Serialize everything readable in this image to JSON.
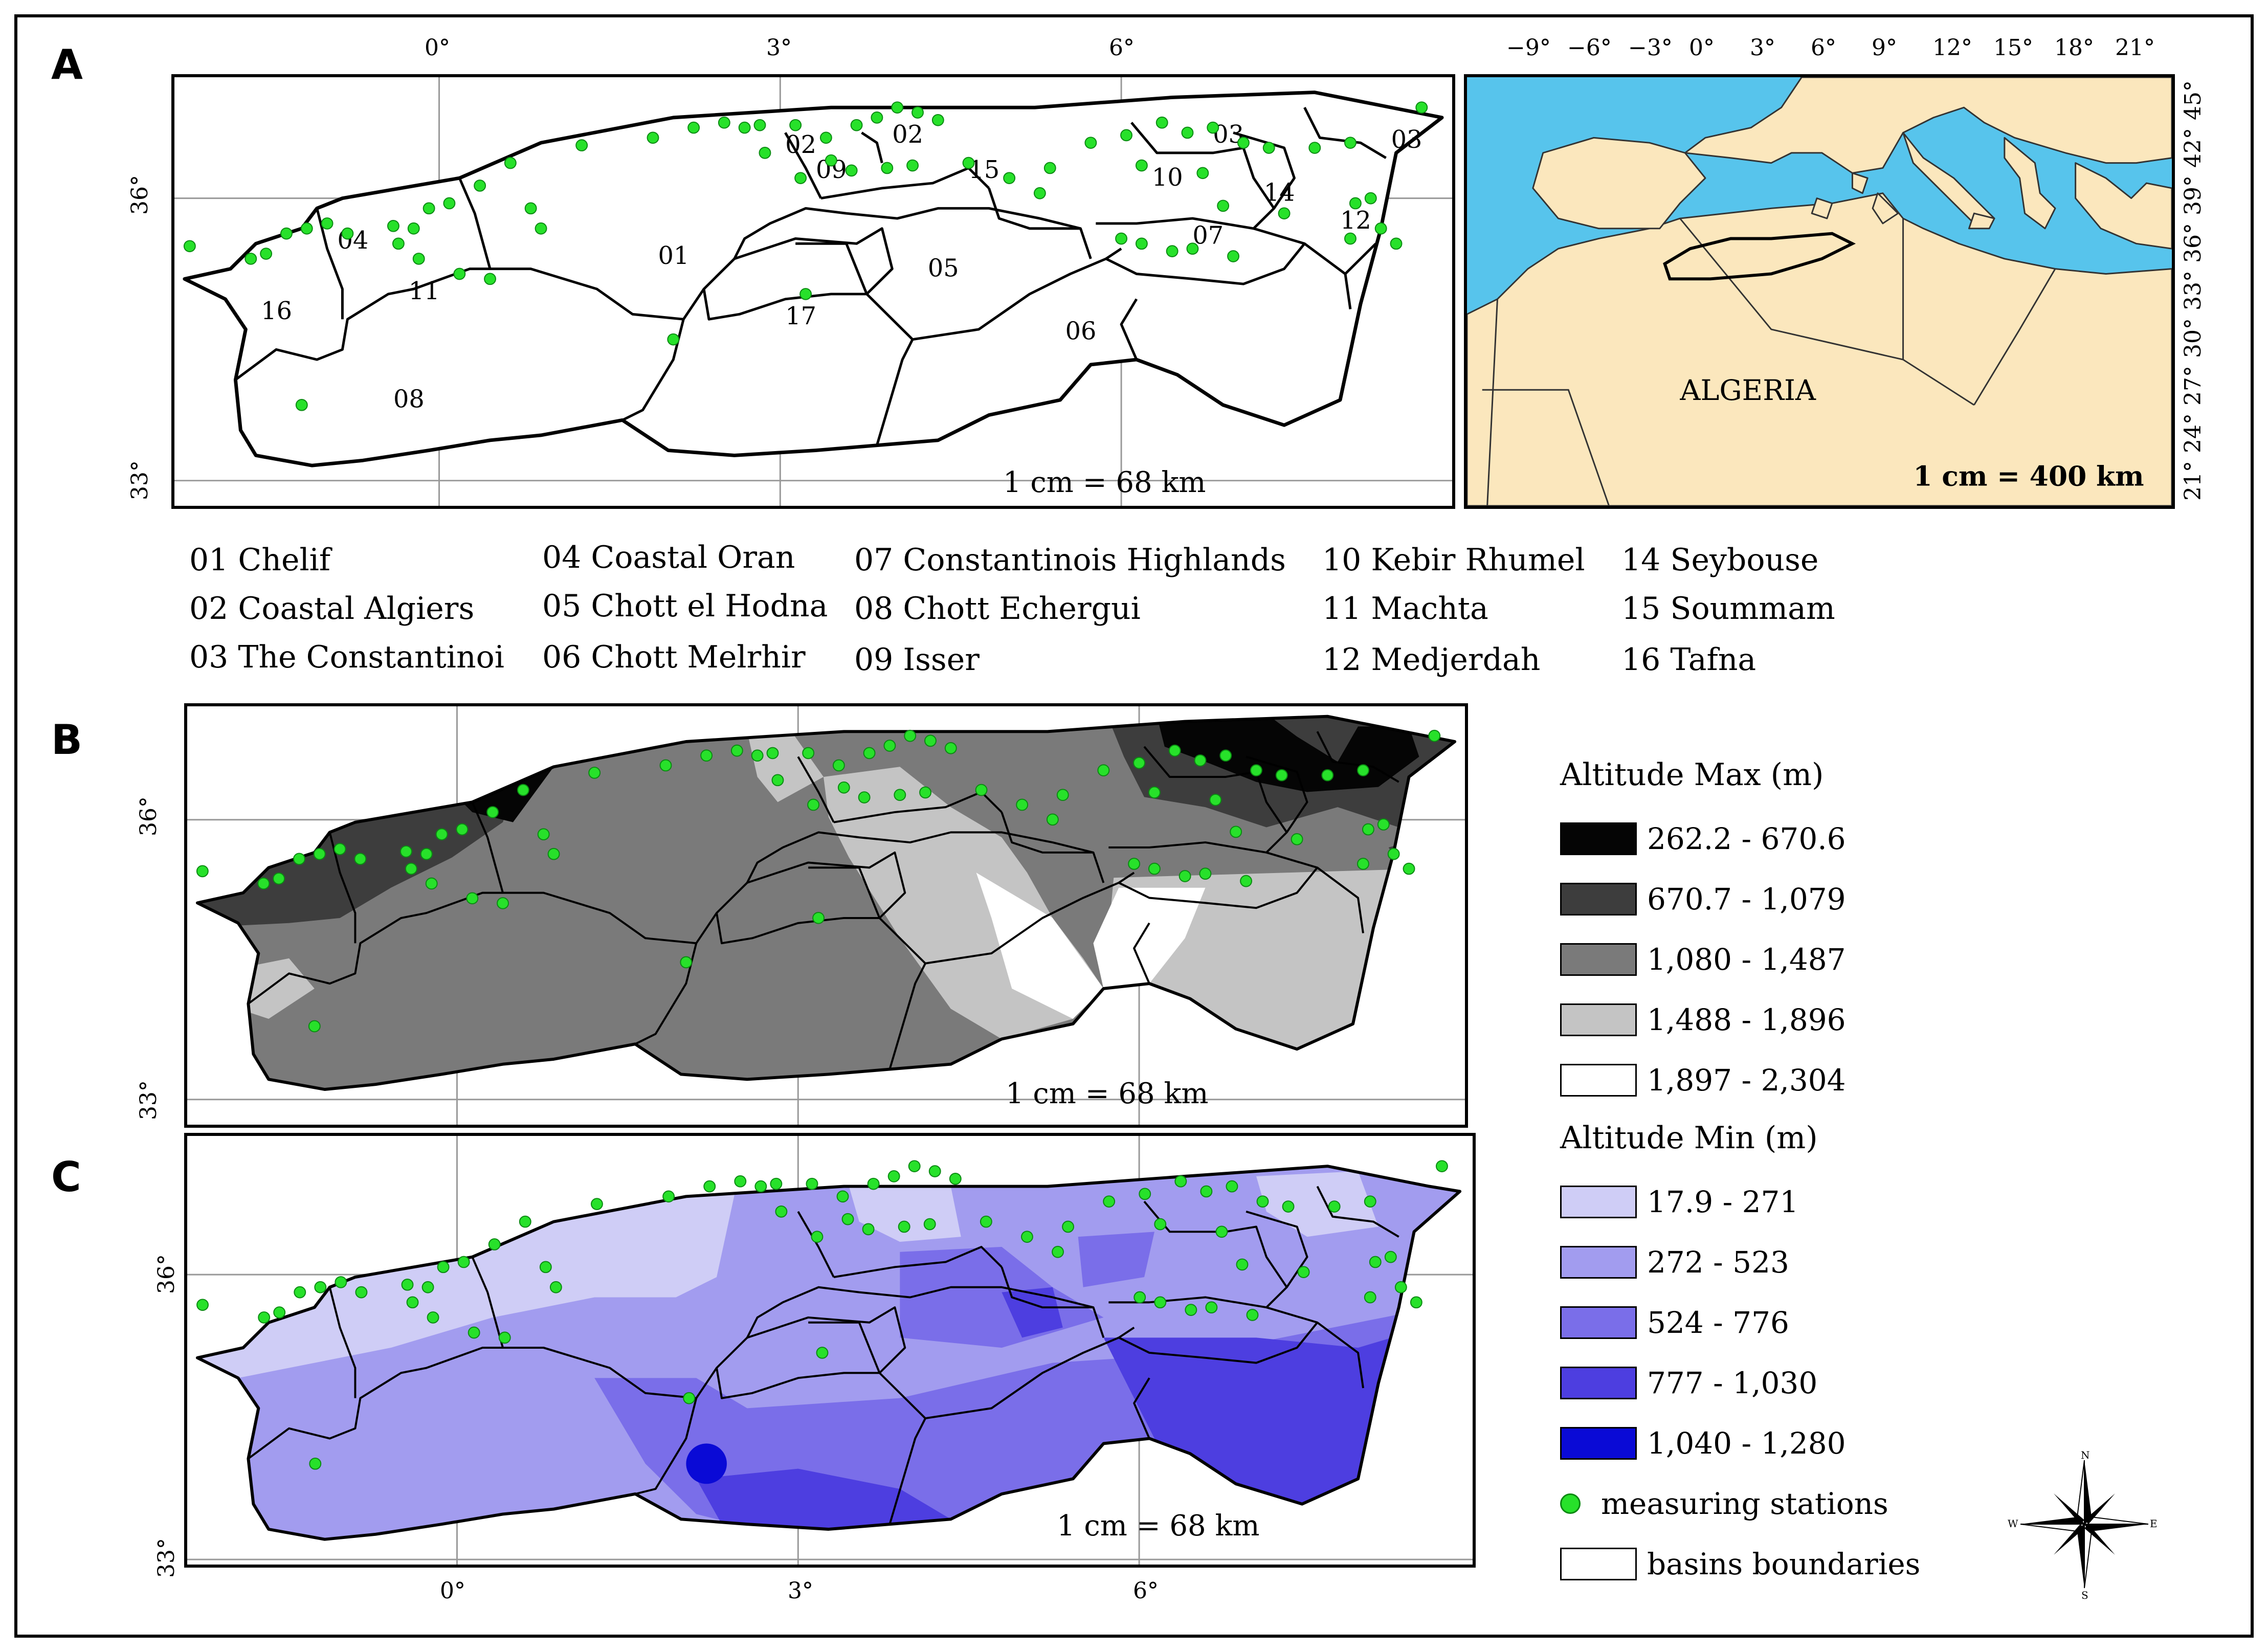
{
  "panels": {
    "a": "A",
    "b": "B",
    "c": "C"
  },
  "longitude_ticks": [
    "0°",
    "3°",
    "6°"
  ],
  "latitude_ticks": [
    "36°",
    "33°"
  ],
  "scale_regional": "1 cm = 68 km",
  "inset": {
    "longitude_ticks": [
      "−9°",
      "−6°",
      "−3°",
      "0°",
      "3°",
      "6°",
      "9°",
      "12°",
      "15°",
      "18°",
      "21°"
    ],
    "latitude_ticks": [
      "45°",
      "42°",
      "39°",
      "36°",
      "33°",
      "30°",
      "27°",
      "24°",
      "21°"
    ],
    "country_label": "ALGERIA",
    "scale": "1 cm = 400 km",
    "sea_color": "#57c4ec",
    "land_color": "#fbe7bd"
  },
  "basins": [
    {
      "code": "01",
      "name": "01 Chelif"
    },
    {
      "code": "02",
      "name": "02 Coastal Algiers"
    },
    {
      "code": "03",
      "name": "03 The Constantinoi"
    },
    {
      "code": "04",
      "name": "04 Coastal Oran"
    },
    {
      "code": "05",
      "name": "05 Chott el Hodna"
    },
    {
      "code": "06",
      "name": "06 Chott Melrhir"
    },
    {
      "code": "07",
      "name": "07 Constantinois Highlands"
    },
    {
      "code": "08",
      "name": "08 Chott Echergui"
    },
    {
      "code": "09",
      "name": "09 Isser"
    },
    {
      "code": "10",
      "name": "10 Kebir Rhumel"
    },
    {
      "code": "11",
      "name": "11 Machta"
    },
    {
      "code": "12",
      "name": "12 Medjerdah"
    },
    {
      "code": "14",
      "name": "14 Seybouse"
    },
    {
      "code": "15",
      "name": "15 Soummam"
    },
    {
      "code": "16",
      "name": "16 Tafna"
    }
  ],
  "map_labels": [
    "04",
    "11",
    "16",
    "01",
    "02",
    "09",
    "02",
    "15",
    "05",
    "17",
    "06",
    "10",
    "03",
    "14",
    "03",
    "12",
    "07",
    "08"
  ],
  "legend": {
    "max_title": "Altitude Max (m)",
    "max_classes": [
      {
        "label": "262.2 - 670.6",
        "color": "#050505"
      },
      {
        "label": "670.7 - 1,079",
        "color": "#3d3d3d"
      },
      {
        "label": "1,080 - 1,487",
        "color": "#7a7a7a"
      },
      {
        "label": "1,488 - 1,896",
        "color": "#c4c4c4"
      },
      {
        "label": "1,897 - 2,304",
        "color": "#ffffff"
      }
    ],
    "min_title": "Altitude Min (m)",
    "min_classes": [
      {
        "label": "17.9 - 271",
        "color": "#cfcdf6"
      },
      {
        "label": "272 - 523",
        "color": "#a29cef"
      },
      {
        "label": "524 - 776",
        "color": "#7a6ee9"
      },
      {
        "label": "777 - 1,030",
        "color": "#4d3ee0"
      },
      {
        "label": "1,040 - 1,280",
        "color": "#0a0ad6"
      }
    ],
    "stations_label": "measuring stations",
    "boundaries_label": "basins boundaries",
    "station_color": "#27e12a"
  },
  "compass": {
    "n": "N",
    "s": "S",
    "e": "E",
    "w": "W"
  }
}
